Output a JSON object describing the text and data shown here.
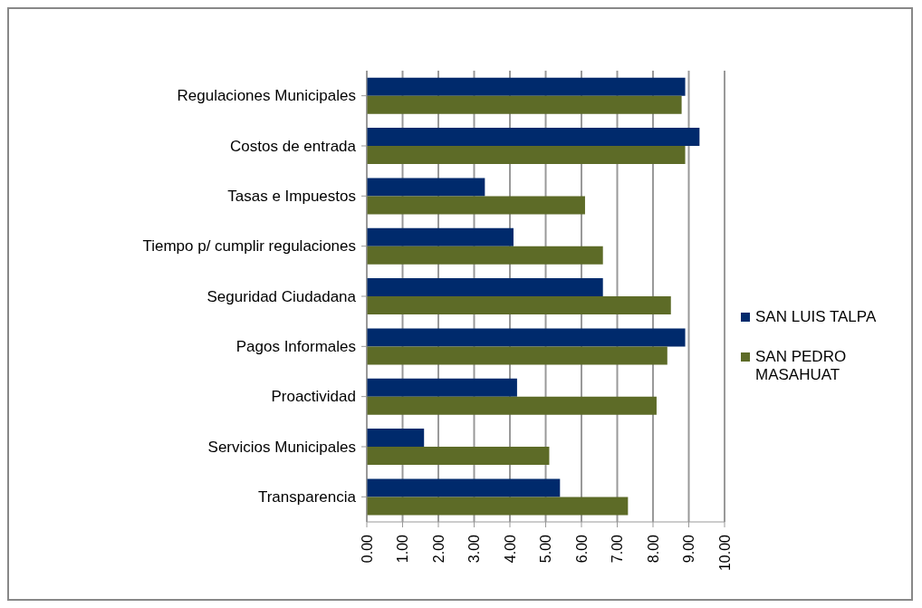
{
  "chart_data": {
    "type": "bar",
    "orientation": "horizontal",
    "categories": [
      "Regulaciones Municipales",
      "Costos de entrada",
      "Tasas e Impuestos",
      "Tiempo p/ cumplir regulaciones",
      "Seguridad Ciudadana",
      "Pagos Informales",
      "Proactividad",
      "Servicios Municipales",
      "Transparencia"
    ],
    "series": [
      {
        "name": "SAN LUIS TALPA",
        "color": "#002a6c",
        "values": [
          8.9,
          9.3,
          3.3,
          4.1,
          6.6,
          8.9,
          4.2,
          1.6,
          5.4
        ]
      },
      {
        "name": "SAN PEDRO MASAHUAT",
        "color": "#5d6b27",
        "values": [
          8.8,
          8.9,
          6.1,
          6.6,
          8.5,
          8.4,
          8.1,
          5.1,
          7.3
        ]
      }
    ],
    "xlim": [
      0,
      10
    ],
    "xticks": [
      {
        "value": 0,
        "label": "0.00"
      },
      {
        "value": 1,
        "label": "1.00"
      },
      {
        "value": 2,
        "label": "2.00"
      },
      {
        "value": 3,
        "label": "3.00"
      },
      {
        "value": 4,
        "label": "4.00"
      },
      {
        "value": 5,
        "label": "5.00"
      },
      {
        "value": 6,
        "label": "6.00"
      },
      {
        "value": 7,
        "label": "7.00"
      },
      {
        "value": 8,
        "label": "8.00"
      },
      {
        "value": 9,
        "label": "9.00"
      },
      {
        "value": 10,
        "label": "10.00"
      }
    ],
    "grid": "x",
    "legend": "right"
  }
}
